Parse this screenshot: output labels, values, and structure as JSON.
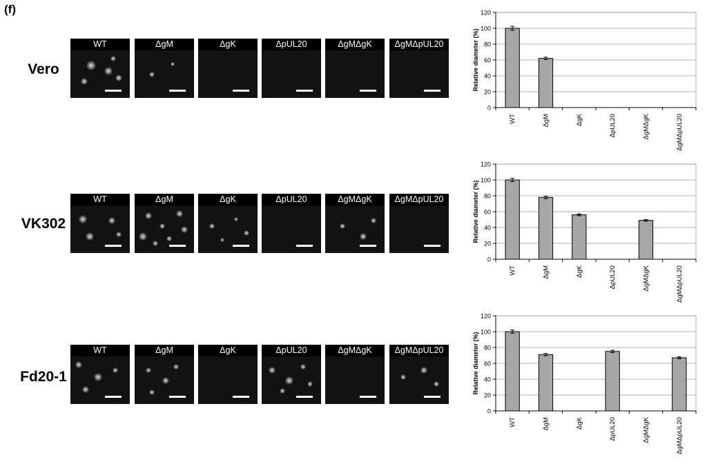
{
  "figure": {
    "panel_letter": "(f)",
    "rows": [
      {
        "label": "Vero",
        "tiles": [
          "WT",
          "ΔgM",
          "ΔgK",
          "ΔpUL20",
          "ΔgMΔgK",
          "ΔgMΔpUL20"
        ]
      },
      {
        "label": "VK302",
        "tiles": [
          "WT",
          "ΔgM",
          "ΔgK",
          "ΔpUL20",
          "ΔgMΔgK",
          "ΔgMΔpUL20"
        ]
      },
      {
        "label": "Fd20-1",
        "tiles": [
          "WT",
          "ΔgM",
          "ΔgK",
          "ΔpUL20",
          "ΔgMΔgK",
          "ΔgMΔpUL20"
        ]
      }
    ]
  },
  "chart_data": [
    {
      "type": "bar",
      "categories": [
        "WT",
        "ΔgM",
        "ΔgK",
        "ΔpUL20",
        "ΔgMΔgK",
        "ΔgMΔpUL20"
      ],
      "values": [
        100,
        62,
        0,
        0,
        0,
        0
      ],
      "errors": [
        2.5,
        1.5,
        0,
        0,
        0,
        0
      ],
      "ylabel": "Relative diameter (%)",
      "ylim": [
        0,
        120
      ],
      "yticks": [
        "0",
        "20",
        "40",
        "60",
        "80",
        "100",
        "120"
      ],
      "grid": true
    },
    {
      "type": "bar",
      "categories": [
        "WT",
        "ΔgM",
        "ΔgK",
        "ΔpUL20",
        "ΔgMΔgK",
        "ΔgMΔpUL20"
      ],
      "values": [
        100,
        78,
        56,
        0,
        49,
        0
      ],
      "errors": [
        2,
        1.5,
        1.2,
        0,
        1,
        0
      ],
      "ylabel": "Relative diameter (%)",
      "ylim": [
        0,
        120
      ],
      "yticks": [
        "0",
        "20",
        "40",
        "60",
        "80",
        "100",
        "120"
      ],
      "grid": true
    },
    {
      "type": "bar",
      "categories": [
        "WT",
        "ΔgM",
        "ΔgK",
        "ΔpUL20",
        "ΔgMΔgK",
        "ΔgMΔpUL20"
      ],
      "values": [
        100,
        71,
        0,
        75,
        0,
        67
      ],
      "errors": [
        2,
        1.5,
        0,
        1.5,
        0,
        1.2
      ],
      "ylabel": "Relative diameter (%)",
      "ylim": [
        0,
        120
      ],
      "yticks": [
        "0",
        "20",
        "40",
        "60",
        "80",
        "100",
        "120"
      ],
      "grid": true
    }
  ],
  "colors": {
    "bar_fill": "#a6a6a6",
    "bar_stroke": "#000000",
    "gridline": "#9a9a9a",
    "tile_header": "#000000",
    "tile_text": "#ffffff",
    "scalebar": "#ffffff"
  }
}
